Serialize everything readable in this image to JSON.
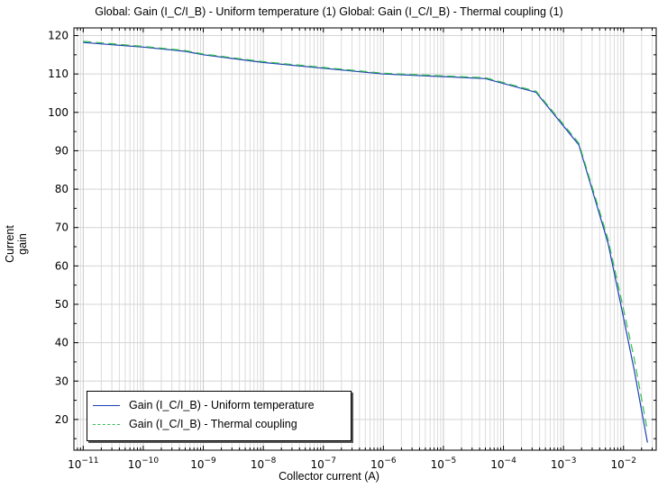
{
  "title": "Global: Gain (I_C/I_B) - Uniform temperature (1)  Global: Gain (I_C/I_B) - Thermal coupling (1)",
  "chart_data": {
    "type": "line",
    "xscale": "log",
    "xlabel": "Collector current (A)",
    "ylabel": "Current gain",
    "xlim": [
      7e-12,
      0.035
    ],
    "ylim": [
      12,
      122
    ],
    "grid": true,
    "legend_position": "bottom-left",
    "yticks": [
      20,
      30,
      40,
      50,
      60,
      70,
      80,
      90,
      100,
      110,
      120
    ],
    "xticks": [
      {
        "exp": "-11",
        "value": 1e-11
      },
      {
        "exp": "-10",
        "value": 1e-10
      },
      {
        "exp": "-9",
        "value": 1e-09
      },
      {
        "exp": "-8",
        "value": 1e-08
      },
      {
        "exp": "-7",
        "value": 1e-07
      },
      {
        "exp": "-6",
        "value": 1e-06
      },
      {
        "exp": "-5",
        "value": 1e-05
      },
      {
        "exp": "-4",
        "value": 0.0001
      },
      {
        "exp": "-3",
        "value": 0.001
      },
      {
        "exp": "-2",
        "value": 0.01
      }
    ],
    "xtick_base": "10",
    "series": [
      {
        "name": "Gain (I_C/I_B) - Uniform temperature",
        "color": "#1f3fb4",
        "dash": "solid",
        "x": [
          1e-11,
          1e-10,
          5e-10,
          1e-09,
          1e-08,
          1e-07,
          1e-06,
          1e-05,
          5e-05,
          0.00035,
          0.0018,
          0.0055,
          0.009,
          0.015,
          0.025
        ],
        "y": [
          118.2,
          117.0,
          115.9,
          115.0,
          113.0,
          111.5,
          110.0,
          109.3,
          108.8,
          105.2,
          91.5,
          66.0,
          50.0,
          33.0,
          14.0
        ]
      },
      {
        "name": "Gain (I_C/I_B) - Thermal coupling",
        "color": "#33bb55",
        "dash": "dashed",
        "x": [
          1e-11,
          1e-10,
          5e-10,
          1e-09,
          1e-08,
          1e-07,
          1e-06,
          1e-05,
          5e-05,
          0.00035,
          0.0018,
          0.0055,
          0.009,
          0.015,
          0.025
        ],
        "y": [
          118.5,
          117.2,
          116.1,
          115.2,
          113.2,
          111.7,
          110.2,
          109.5,
          109.0,
          105.5,
          92.0,
          67.0,
          52.0,
          36.0,
          17.0
        ]
      }
    ]
  }
}
